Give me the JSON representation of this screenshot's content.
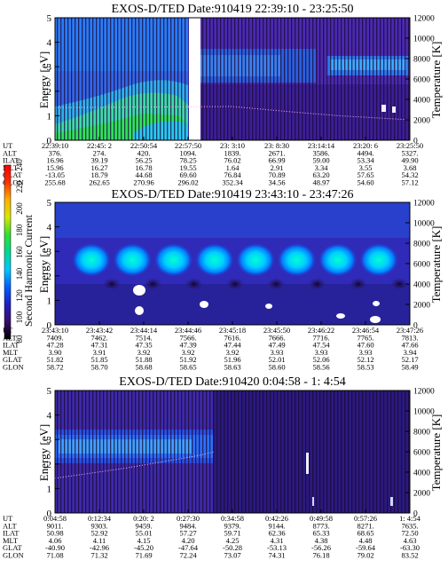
{
  "panels": [
    {
      "title": "EXOS-D/TED   Date:910419  22:39:10 - 23:25:50",
      "ylabel": "Energy [eV]",
      "ylabel_right": "Temperature [K]",
      "energy_ticks": [
        "0",
        "1",
        "2",
        "3",
        "4",
        "5"
      ],
      "temp_ticks": [
        "0",
        "2000",
        "4000",
        "6000",
        "8000",
        "10000",
        "12000"
      ],
      "ut_ticks": [
        "22:39:10",
        "22:45: 2",
        "22:50:54",
        "22:57:50",
        "23: 3:10",
        "23: 8:30",
        "23:14:14",
        "23:20: 6",
        "23:25:50"
      ],
      "rows": [
        {
          "label": "UT",
          "values": [
            "22:39:10",
            "22:45: 2",
            "22:50:54",
            "22:57:50",
            "23: 3:10",
            "23: 8:30",
            "23:14:14",
            "23:20: 6",
            "23:25:50"
          ]
        },
        {
          "label": "ALT",
          "values": [
            "376.",
            "274.",
            "420.",
            "1094.",
            "1839.",
            "2671.",
            "3586.",
            "4494.",
            "5327."
          ]
        },
        {
          "label": "ILAT",
          "values": [
            "16.96",
            "39.19",
            "56.25",
            "78.25",
            "76.02",
            "66.99",
            "59.00",
            "53.34",
            "49.90"
          ]
        },
        {
          "label": "MLT",
          "values": [
            "15.96",
            "16.27",
            "16.78",
            "19.55",
            "1.64",
            "2.91",
            "3.34",
            "3.55",
            "3.68"
          ]
        },
        {
          "label": "GLAT",
          "values": [
            "-13.05",
            "18.79",
            "44.68",
            "69.60",
            "76.84",
            "70.89",
            "63.20",
            "57.65",
            "54.32"
          ]
        },
        {
          "label": "GLON",
          "values": [
            "255.68",
            "262.65",
            "270.96",
            "296.02",
            "352.34",
            "34.56",
            "48.97",
            "54.60",
            "57.12"
          ]
        }
      ]
    },
    {
      "title": "EXOS-D/TED   Date:910419  23:43:10 - 23:47:26",
      "ylabel": "Energy [eV]",
      "ylabel_right": "Temperature [K]",
      "energy_ticks": [
        "0",
        "1",
        "2",
        "3",
        "4",
        "5"
      ],
      "temp_ticks": [
        "0",
        "2000",
        "4000",
        "6000",
        "8000",
        "10000",
        "12000"
      ],
      "ut_ticks": [
        "23:43:10",
        "23:43:42",
        "23:44:14",
        "23:44:46",
        "23:45:18",
        "23:45:50",
        "23:46:22",
        "23:46:54",
        "23:47:26"
      ],
      "rows": [
        {
          "label": "UT",
          "values": [
            "23:43:10",
            "23:43:42",
            "23:44:14",
            "23:44:46",
            "23:45:18",
            "23:45:50",
            "23:46:22",
            "23:46:54",
            "23:47:26"
          ]
        },
        {
          "label": "ALT",
          "values": [
            "7409.",
            "7462.",
            "7514.",
            "7566.",
            "7616.",
            "7666.",
            "7716.",
            "7765.",
            "7813."
          ]
        },
        {
          "label": "ILAT",
          "values": [
            "47.28",
            "47.31",
            "47.35",
            "47.39",
            "47.44",
            "47.49",
            "47.54",
            "47.60",
            "47.66"
          ]
        },
        {
          "label": "MLT",
          "values": [
            "3.90",
            "3.91",
            "3.92",
            "3.92",
            "3.92",
            "3.93",
            "3.93",
            "3.93",
            "3.94"
          ]
        },
        {
          "label": "GLAT",
          "values": [
            "51.82",
            "51.85",
            "51.88",
            "51.92",
            "51.96",
            "52.01",
            "52.06",
            "52.12",
            "52.17"
          ]
        },
        {
          "label": "GLON",
          "values": [
            "58.72",
            "58.70",
            "58.68",
            "58.65",
            "58.63",
            "58.60",
            "58.56",
            "58.53",
            "58.49"
          ]
        }
      ]
    },
    {
      "title": "EXOS-D/TED   Date:910420   0:04:58 -  1: 4:54",
      "ylabel": "Energy [eV]",
      "ylabel_right": "Temperature [K]",
      "energy_ticks": [
        "0",
        "1",
        "2",
        "3",
        "4",
        "5"
      ],
      "temp_ticks": [
        "0",
        "2000",
        "4000",
        "6000",
        "8000",
        "10000",
        "12000"
      ],
      "ut_ticks": [
        "0:04:58",
        "0:12:34",
        "0:20: 2",
        "0:27:30",
        "0:34:58",
        "0:42:26",
        "0:49:58",
        "0:57:26",
        "1: 4:54"
      ],
      "rows": [
        {
          "label": "UT",
          "values": [
            "0:04:58",
            "0:12:34",
            "0:20: 2",
            "0:27:30",
            "0:34:58",
            "0:42:26",
            "0:49:58",
            "0:57:26",
            "1: 4:54"
          ]
        },
        {
          "label": "ALT",
          "values": [
            "9011.",
            "9303.",
            "9459.",
            "9484.",
            "9379.",
            "9144.",
            "8773.",
            "8271.",
            "7635."
          ]
        },
        {
          "label": "ILAT",
          "values": [
            "50.98",
            "52.92",
            "55.01",
            "57.27",
            "59.71",
            "62.36",
            "65.33",
            "68.65",
            "72.50"
          ]
        },
        {
          "label": "MLT",
          "values": [
            "4.06",
            "4.11",
            "4.15",
            "4.20",
            "4.25",
            "4.31",
            "4.38",
            "4.48",
            "4.63"
          ]
        },
        {
          "label": "GLAT",
          "values": [
            "-40.90",
            "-42.96",
            "-45.20",
            "-47.64",
            "-50.28",
            "-53.13",
            "-56.26",
            "-59.64",
            "-63.30"
          ]
        },
        {
          "label": "GLON",
          "values": [
            "71.08",
            "71.32",
            "71.69",
            "72.24",
            "73.07",
            "74.31",
            "76.18",
            "79.02",
            "83.52"
          ]
        }
      ]
    }
  ],
  "colorbar": {
    "label": "Second Harmonic Current",
    "ticks": [
      "80",
      "100",
      "120",
      "140",
      "160",
      "180",
      "200",
      "220",
      "240"
    ],
    "colors": [
      "#000000",
      "#3a0d6b",
      "#2020c0",
      "#0060ff",
      "#00c8ff",
      "#00d890",
      "#30e030",
      "#d8e800",
      "#ffb000",
      "#ff3000",
      "#ff0000"
    ]
  },
  "chart_data": [
    {
      "type": "heatmap",
      "title": "EXOS-D/TED   Date:910419  22:39:10 - 23:25:50",
      "x_ticks": [
        "22:39:10",
        "22:45: 2",
        "22:50:54",
        "22:57:50",
        "23: 3:10",
        "23: 8:30",
        "23:14:14",
        "23:20: 6",
        "23:25:50"
      ],
      "ylabel": "Energy [eV]",
      "ylim": [
        0,
        5
      ],
      "ylabel_right": "Temperature [K]",
      "ylim_right": [
        0,
        12000
      ],
      "series": [
        {
          "values": [
            [
              0.0,
              3200
            ],
            [
              0.5,
              3300
            ],
            [
              0.66,
              2800
            ],
            [
              0.8,
              2400
            ],
            [
              1.0,
              2000
            ]
          ]
        }
      ]
    },
    {
      "type": "heatmap",
      "title": "EXOS-D/TED   Date:910419  23:43:10 - 23:47:26",
      "x_ticks": [
        "23:43:10",
        "23:43:42",
        "23:44:14",
        "23:44:46",
        "23:45:18",
        "23:45:50",
        "23:46:22",
        "23:46:54",
        "23:47:26"
      ],
      "ylabel": "Energy [eV]",
      "ylim": [
        0,
        5
      ],
      "ylabel_right": "Temperature [K]",
      "ylim_right": [
        0,
        12000
      ],
      "colorbar_label": "Second Harmonic Current",
      "colorbar_range": [
        80,
        240
      ],
      "blobs_energy_eV": 2.65
    },
    {
      "type": "heatmap",
      "title": "EXOS-D/TED   Date:910420   0:04:58 -  1: 4:54",
      "x_ticks": [
        "0:04:58",
        "0:12:34",
        "0:20: 2",
        "0:27:30",
        "0:34:58",
        "0:42:26",
        "0:49:58",
        "0:57:26",
        "1: 4:54"
      ],
      "ylabel": "Energy [eV]",
      "ylim": [
        0,
        5
      ],
      "ylabel_right": "Temperature [K]",
      "ylim_right": [
        0,
        12000
      ],
      "series": [
        {
          "values": [
            [
              0.0,
              3400
            ],
            [
              0.2,
              4400
            ],
            [
              0.4,
              5600
            ],
            [
              0.45,
              6000
            ]
          ]
        }
      ]
    }
  ]
}
